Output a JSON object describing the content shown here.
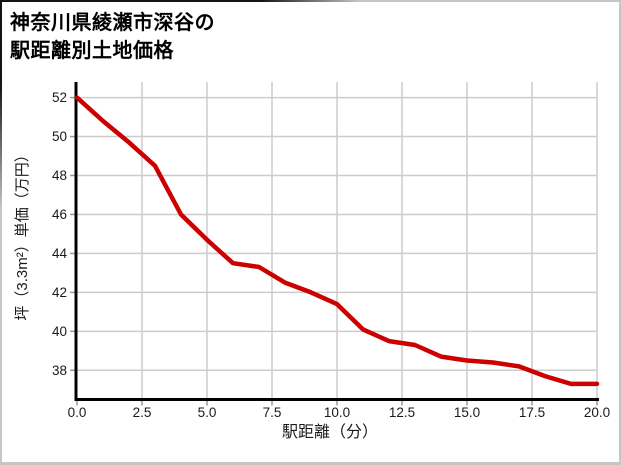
{
  "title": {
    "line1": "神奈川県綾瀬市深谷の",
    "line2": "駅距離別土地価格"
  },
  "chart_data": {
    "type": "line",
    "title": "神奈川県綾瀬市深谷の駅距離別土地価格",
    "xlabel": "駅距離（分）",
    "ylabel": "坪（3.3m²）単価（万円）",
    "x": [
      0,
      1,
      2,
      3,
      4,
      5,
      6,
      7,
      8,
      9,
      10,
      11,
      12,
      13,
      14,
      15,
      16,
      17,
      18,
      19,
      20
    ],
    "values": [
      52.0,
      50.8,
      49.7,
      48.5,
      46.0,
      44.7,
      43.5,
      43.3,
      42.5,
      42.0,
      41.4,
      40.1,
      39.5,
      39.3,
      38.7,
      38.5,
      38.4,
      38.2,
      37.7,
      37.3,
      37.3
    ],
    "xlim": [
      0,
      20
    ],
    "ylim": [
      36.5,
      52.8
    ],
    "x_tick_values": [
      0,
      2.5,
      5,
      7.5,
      10,
      12.5,
      15,
      17.5,
      20
    ],
    "x_tick_labels": [
      "0.0",
      "2.5",
      "5.0",
      "7.5",
      "10.0",
      "12.5",
      "15.0",
      "17.5",
      "20.0"
    ],
    "y_tick_values": [
      52,
      50,
      48,
      46,
      44,
      42,
      40,
      38
    ],
    "y_tick_labels": [
      "52",
      "50",
      "48",
      "46",
      "44",
      "42",
      "40",
      "38"
    ],
    "grid": true,
    "legend": false,
    "colors": {
      "line": "#cc0000",
      "grid": "#cccccc",
      "axis": "#000000",
      "tick": "#999999",
      "text": "#1a1a1a",
      "background": "#ffffff"
    }
  }
}
